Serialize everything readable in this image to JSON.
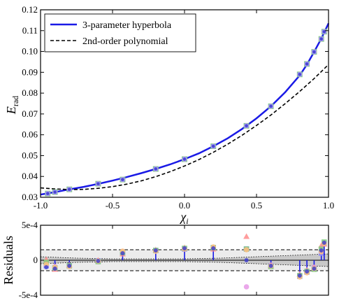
{
  "chart_data": [
    {
      "type": "line",
      "xlabel": "χ",
      "xlabel_sub": "i",
      "ylabel": "E",
      "ylabel_sub": "rad",
      "xlim": [
        -1.0,
        1.0
      ],
      "ylim": [
        0.03,
        0.12
      ],
      "xticks": [
        -1.0,
        -0.5,
        0.0,
        0.5,
        1.0
      ],
      "xtick_labels": [
        "-1.0",
        "-0.5",
        "0.0",
        "0.5",
        "1.0"
      ],
      "yticks": [
        0.03,
        0.04,
        0.05,
        0.06,
        0.07,
        0.08,
        0.09,
        0.1,
        0.11,
        0.12
      ],
      "ytick_labels": [
        "0.03",
        "0.04",
        "0.05",
        "0.06",
        "0.07",
        "0.08",
        "0.09",
        "0.10",
        "0.11",
        "0.12"
      ],
      "legend": {
        "placement": "top-left",
        "entries": [
          {
            "label": "3-parameter hyperbola",
            "color": "#1a1ae6",
            "style": "solid"
          },
          {
            "label": "2nd-order polynomial",
            "color": "#000000",
            "style": "dashed"
          }
        ]
      },
      "series": [
        {
          "name": "3-parameter hyperbola",
          "color": "#1a1ae6",
          "x": [
            -1.0,
            -0.9,
            -0.8,
            -0.7,
            -0.6,
            -0.5,
            -0.4,
            -0.3,
            -0.2,
            -0.1,
            0.0,
            0.1,
            0.2,
            0.3,
            0.4,
            0.5,
            0.6,
            0.7,
            0.8,
            0.85,
            0.9,
            0.95,
            1.0
          ],
          "y": [
            0.0313,
            0.0325,
            0.0338,
            0.035,
            0.0364,
            0.038,
            0.0397,
            0.0416,
            0.0436,
            0.0458,
            0.0483,
            0.0511,
            0.0545,
            0.0583,
            0.0628,
            0.0679,
            0.0737,
            0.0805,
            0.0885,
            0.0937,
            0.0998,
            0.1062,
            0.1135
          ]
        },
        {
          "name": "2nd-order polynomial",
          "color": "#000000",
          "x": [
            -1.0,
            -0.9,
            -0.8,
            -0.7,
            -0.6,
            -0.5,
            -0.4,
            -0.3,
            -0.2,
            -0.1,
            0.0,
            0.1,
            0.2,
            0.3,
            0.4,
            0.5,
            0.6,
            0.7,
            0.8,
            0.9,
            1.0
          ],
          "y": [
            0.0345,
            0.034,
            0.0337,
            0.0338,
            0.0343,
            0.0351,
            0.0363,
            0.0379,
            0.0399,
            0.0423,
            0.045,
            0.0481,
            0.0516,
            0.0555,
            0.0598,
            0.0645,
            0.0695,
            0.075,
            0.0808,
            0.087,
            0.0937
          ]
        }
      ],
      "markers": {
        "x": [
          -0.95,
          -0.9,
          -0.8,
          -0.6,
          -0.43,
          -0.2,
          0.0,
          0.2,
          0.43,
          0.6,
          0.8,
          0.85,
          0.9,
          0.95,
          0.97
        ],
        "y": [
          0.0318,
          0.0325,
          0.0338,
          0.0365,
          0.0385,
          0.0436,
          0.0483,
          0.0545,
          0.0643,
          0.0737,
          0.089,
          0.094,
          0.0998,
          0.106,
          0.1095
        ]
      },
      "marker_colors": [
        "#8c8cff",
        "#e699e6",
        "#ff8c8c",
        "#80cc80",
        "#ffc080",
        "#4040cc"
      ]
    },
    {
      "type": "scatter",
      "ylabel": "Residuals",
      "xlim": [
        -1.0,
        1.0
      ],
      "ylim": [
        -0.0005,
        0.0005
      ],
      "yticks": [
        -0.0005,
        0.0,
        0.0005
      ],
      "ytick_labels": [
        "-5e-4",
        "0",
        "5e-4"
      ],
      "band_half_width": 0.00015,
      "inner_band": [
        5e-05,
        3e-05,
        2e-05,
        2e-05,
        2e-05,
        3e-05,
        5e-05,
        7e-05,
        9e-05
      ],
      "inner_band_x": [
        -1.0,
        -0.75,
        -0.5,
        -0.25,
        0.0,
        0.25,
        0.5,
        0.75,
        1.0
      ],
      "points": [
        {
          "x": -0.96,
          "values": [
            -8e-05,
            -5e-05,
            1e-05,
            -3e-05,
            -6e-05,
            -0.0001
          ]
        },
        {
          "x": -0.9,
          "values": [
            -0.00012,
            -9e-05,
            -0.00013,
            -0.00011,
            -0.0001,
            -0.00012
          ]
        },
        {
          "x": -0.8,
          "values": [
            -8e-05,
            -9e-05,
            -7e-05,
            -8e-05,
            -9e-05,
            -8e-05
          ]
        },
        {
          "x": -0.6,
          "values": [
            -1e-05,
            -2e-05,
            0.0,
            -2e-05,
            -1e-05,
            -1e-05
          ]
        },
        {
          "x": -0.43,
          "values": [
            0.00011,
            0.00012,
            9e-05,
            0.00011,
            0.00013,
            0.0001
          ]
        },
        {
          "x": -0.2,
          "values": [
            0.00014,
            0.00013,
            0.00015,
            0.00014,
            0.00013,
            0.00014
          ]
        },
        {
          "x": 0.0,
          "values": [
            0.00016,
            0.00017,
            0.00018,
            0.00017,
            0.00016,
            0.00017
          ]
        },
        {
          "x": 0.2,
          "values": [
            0.00018,
            0.00017,
            0.00016,
            0.00018,
            0.00019,
            0.00017
          ]
        },
        {
          "x": 0.43,
          "values": [
            0.00016,
            -0.00038,
            0.00034,
            0.00016,
            0.00015,
            0.0
          ]
        },
        {
          "x": 0.6,
          "values": [
            -8e-05,
            -7e-05,
            -8e-05,
            -9e-05,
            -8e-05,
            -8e-05
          ]
        },
        {
          "x": 0.8,
          "values": [
            -0.00023,
            -0.00021,
            -0.0002,
            -0.00022,
            -0.00024,
            -0.00022
          ]
        },
        {
          "x": 0.85,
          "values": [
            -0.00017,
            -0.00015,
            -0.00014,
            -0.00016,
            -0.00018,
            -0.00016
          ]
        },
        {
          "x": 0.9,
          "values": [
            -0.00012,
            -0.0001,
            -0.00011,
            -0.00013,
            -0.00012,
            -0.00012
          ]
        },
        {
          "x": 0.95,
          "values": [
            0.0001,
            0.00014,
            0.00021,
            0.00016,
            0.00012,
            0.00014
          ]
        },
        {
          "x": 0.97,
          "values": [
            0.00024,
            0.00025,
            0.00023,
            0.00026,
            0.00024,
            0.00025
          ]
        }
      ]
    }
  ]
}
